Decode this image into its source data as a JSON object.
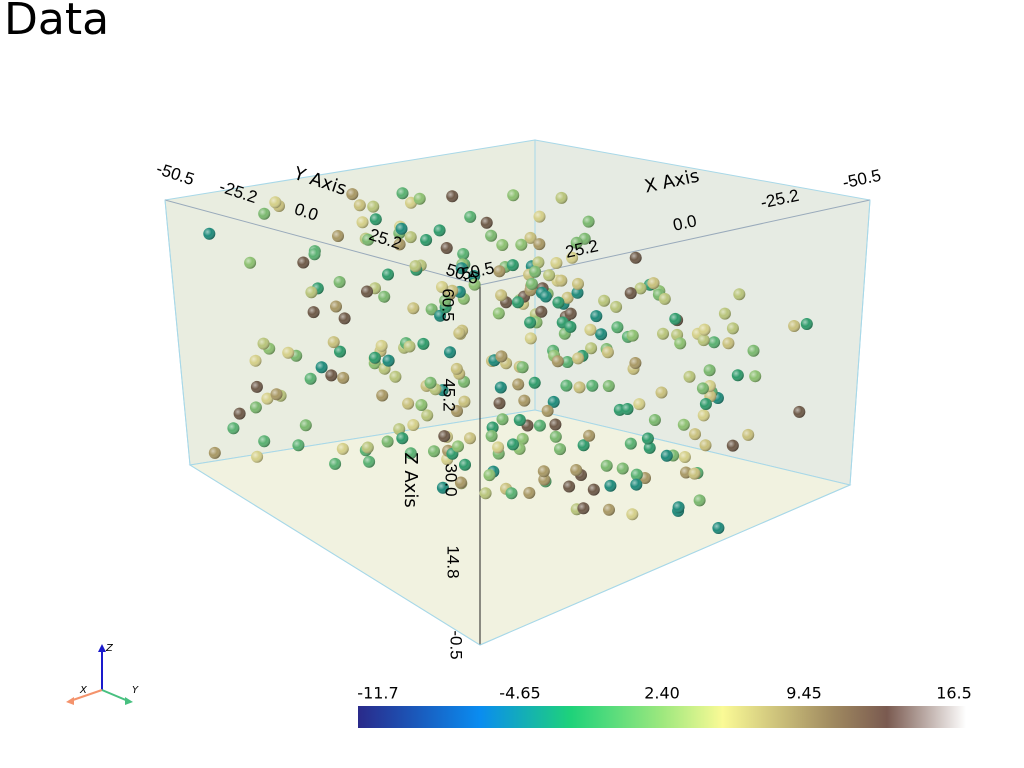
{
  "title": "Data",
  "axes": {
    "x": {
      "label": "X Axis",
      "ticks": [
        "-50.5",
        "-25.2",
        "0.0",
        "25.2",
        "50.5"
      ]
    },
    "y": {
      "label": "Y Axis",
      "ticks": [
        "-50.5",
        "-25.2",
        "0.0",
        "25.2",
        "50.5"
      ]
    },
    "z": {
      "label": "Z Axis",
      "ticks": [
        "-0.5",
        "14.8",
        "30.0",
        "45.2",
        "60.5"
      ]
    }
  },
  "colorbar": {
    "labels": [
      "-11.7",
      "-4.65",
      "2.40",
      "9.45",
      "16.5"
    ]
  },
  "orientation": {
    "x": "X",
    "y": "Y",
    "z": "Z"
  }
}
